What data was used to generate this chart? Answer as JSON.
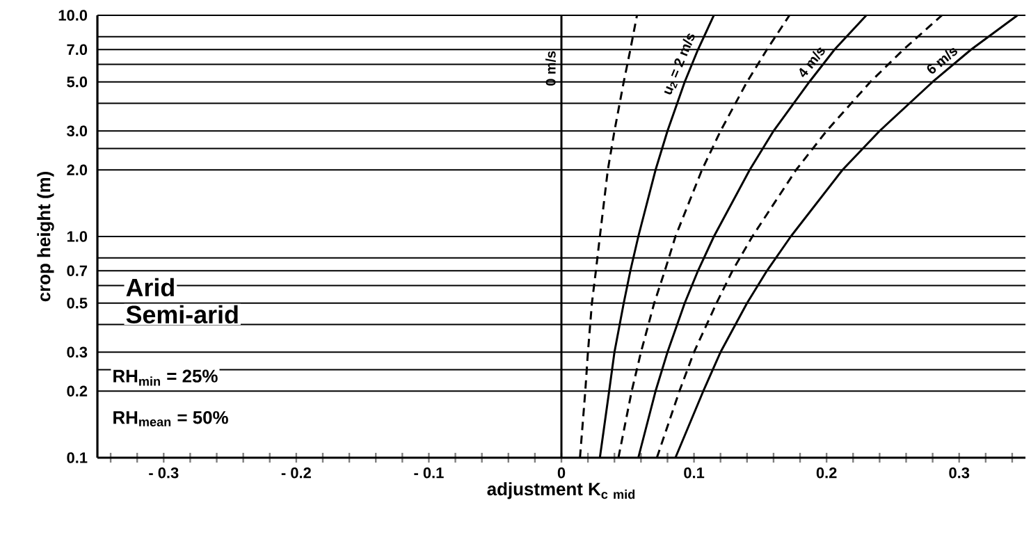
{
  "chart_data": {
    "type": "line",
    "xlabel": "\\mathbf{adjustment\\ K_{c\\ mid}}",
    "ylabel": "crop height (m)",
    "xlim": [
      -0.35,
      0.35
    ],
    "ylim": [
      0.1,
      10
    ],
    "log": "y",
    "grid": "y",
    "marker": "none",
    "xticks": [
      {
        "value": -0.34,
        "label": null
      },
      {
        "value": -0.32,
        "label": null
      },
      {
        "value": -0.3,
        "label": "- 0.3"
      },
      {
        "value": -0.28,
        "label": null
      },
      {
        "value": -0.26,
        "label": null
      },
      {
        "value": -0.24,
        "label": null
      },
      {
        "value": -0.22,
        "label": null
      },
      {
        "value": -0.2,
        "label": "- 0.2"
      },
      {
        "value": -0.18,
        "label": null
      },
      {
        "value": -0.16,
        "label": null
      },
      {
        "value": -0.14,
        "label": null
      },
      {
        "value": -0.12,
        "label": null
      },
      {
        "value": -0.1,
        "label": "- 0.1"
      },
      {
        "value": -0.08,
        "label": null
      },
      {
        "value": -0.06,
        "label": null
      },
      {
        "value": -0.04,
        "label": null
      },
      {
        "value": -0.02,
        "label": null
      },
      0,
      {
        "value": 0.02,
        "label": null
      },
      {
        "value": 0.04,
        "label": null
      },
      {
        "value": 0.06,
        "label": null
      },
      {
        "value": 0.08,
        "label": null
      },
      0.1,
      {
        "value": 0.12,
        "label": null
      },
      {
        "value": 0.14,
        "label": null
      },
      {
        "value": 0.16,
        "label": null
      },
      {
        "value": 0.18,
        "label": null
      },
      0.2,
      {
        "value": 0.22,
        "label": null
      },
      {
        "value": 0.24,
        "label": null
      },
      {
        "value": 0.26,
        "label": null
      },
      {
        "value": 0.28,
        "label": null
      },
      0.3,
      {
        "value": 0.32,
        "label": null
      },
      {
        "value": 0.34,
        "label": null
      }
    ],
    "yticks": [
      0.1,
      0.2,
      {
        "value": 0.25,
        "label": null
      },
      0.3,
      {
        "value": 0.4,
        "label": null
      },
      0.5,
      {
        "value": 0.6,
        "label": null
      },
      0.7,
      {
        "value": 0.8,
        "label": null
      },
      {
        "value": 1,
        "label": "1.0"
      },
      {
        "value": 2,
        "label": "2.0"
      },
      {
        "value": 2.5,
        "label": null
      },
      {
        "value": 3,
        "label": "3.0"
      },
      {
        "value": 4,
        "label": null
      },
      {
        "value": 5,
        "label": "5.0"
      },
      {
        "value": 6,
        "label": null
      },
      {
        "value": 7,
        "label": "7.0"
      },
      {
        "value": 8,
        "label": null
      },
      {
        "value": 10,
        "label": "10.0"
      }
    ],
    "annotations": [
      "Arid",
      "Semi-arid",
      "RH$_{min}$ = 25%",
      "RH$_{mean}$ = 50%"
    ],
    "series": [
      {
        "name": "0 m/s",
        "color": "#000000",
        "line_style": "solid",
        "x": [
          0,
          0,
          0,
          0,
          0,
          0,
          0,
          0,
          0,
          0,
          0
        ],
        "values": [
          0.1,
          0.2,
          0.3,
          0.5,
          0.7,
          1,
          2,
          3,
          5,
          7,
          10
        ]
      },
      {
        "color": "#000000",
        "line_style": "dashed",
        "x": [
          0.014,
          0.018,
          0.02,
          0.023,
          0.026,
          0.029,
          0.035,
          0.04,
          0.047,
          0.052,
          0.057
        ],
        "values": [
          0.1,
          0.2,
          0.3,
          0.5,
          0.7,
          1,
          2,
          3,
          5,
          7,
          10
        ]
      },
      {
        "name": "u$_{2}$ = 2 m/s",
        "color": "#000000",
        "line_style": "solid",
        "x": [
          0.029,
          0.036,
          0.04,
          0.047,
          0.052,
          0.058,
          0.071,
          0.08,
          0.093,
          0.103,
          0.115
        ],
        "values": [
          0.1,
          0.2,
          0.3,
          0.5,
          0.7,
          1,
          2,
          3,
          5,
          7,
          10
        ]
      },
      {
        "color": "#000000",
        "line_style": "dashed",
        "x": [
          0.043,
          0.053,
          0.06,
          0.07,
          0.078,
          0.086,
          0.106,
          0.12,
          0.14,
          0.155,
          0.172
        ],
        "values": [
          0.1,
          0.2,
          0.3,
          0.5,
          0.7,
          1,
          2,
          3,
          5,
          7,
          10
        ]
      },
      {
        "name": "4 m/s",
        "color": "#000000",
        "line_style": "solid",
        "x": [
          0.058,
          0.071,
          0.08,
          0.093,
          0.103,
          0.115,
          0.142,
          0.16,
          0.187,
          0.206,
          0.23
        ],
        "values": [
          0.1,
          0.2,
          0.3,
          0.5,
          0.7,
          1,
          2,
          3,
          5,
          7,
          10
        ]
      },
      {
        "color": "#000000",
        "line_style": "dashed",
        "x": [
          0.072,
          0.089,
          0.1,
          0.117,
          0.129,
          0.144,
          0.177,
          0.2,
          0.233,
          0.258,
          0.287
        ],
        "values": [
          0.1,
          0.2,
          0.3,
          0.5,
          0.7,
          1,
          2,
          3,
          5,
          7,
          10
        ]
      },
      {
        "name": "6 m/s",
        "color": "#000000",
        "line_style": "solid",
        "x": [
          0.086,
          0.107,
          0.12,
          0.14,
          0.155,
          0.173,
          0.212,
          0.24,
          0.28,
          0.309,
          0.344
        ],
        "values": [
          0.1,
          0.2,
          0.3,
          0.5,
          0.7,
          1,
          2,
          3,
          5,
          7,
          10
        ]
      }
    ]
  }
}
